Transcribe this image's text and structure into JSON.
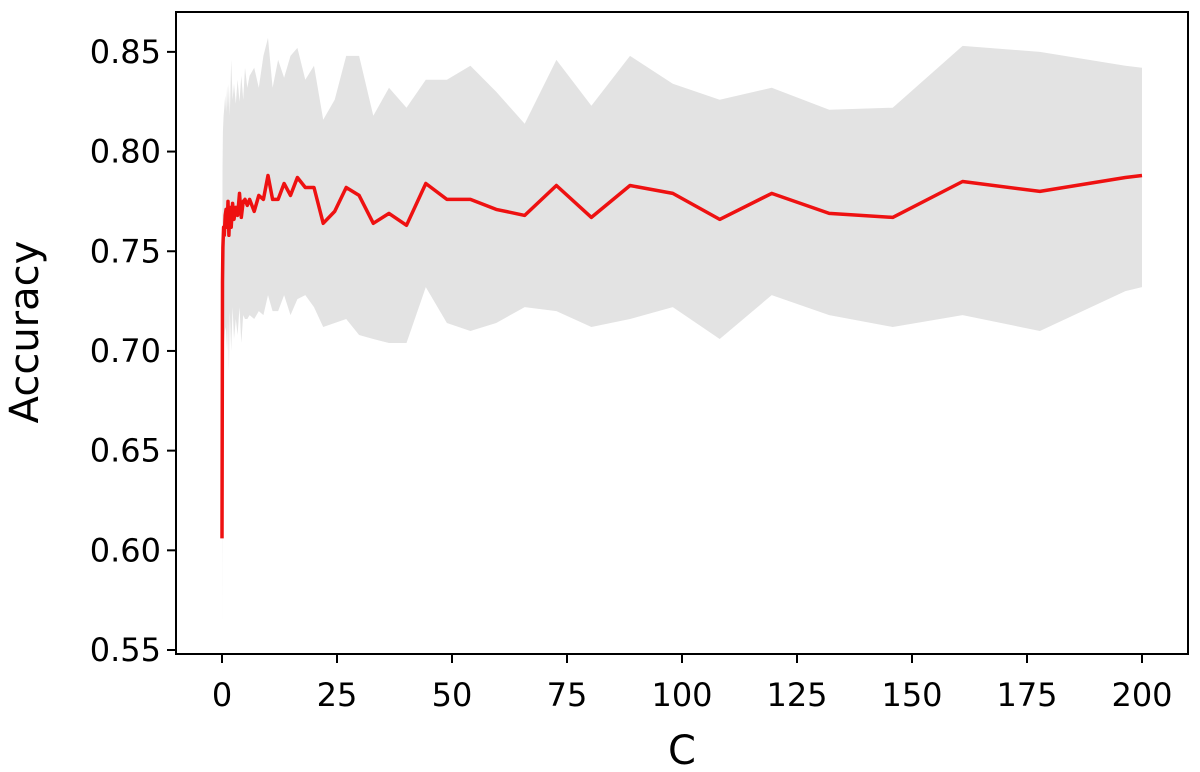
{
  "chart_data": {
    "type": "line",
    "title": "",
    "xlabel": "C",
    "ylabel": "Accuracy",
    "xlim": [
      -10,
      210
    ],
    "ylim": [
      0.548,
      0.87
    ],
    "xticks": [
      0,
      25,
      50,
      75,
      100,
      125,
      150,
      175,
      200
    ],
    "xtick_labels": [
      "0",
      "25",
      "50",
      "75",
      "100",
      "125",
      "150",
      "175",
      "200"
    ],
    "yticks": [
      0.55,
      0.6,
      0.65,
      0.7,
      0.75,
      0.8,
      0.85
    ],
    "ytick_labels": [
      "0.55",
      "0.60",
      "0.65",
      "0.70",
      "0.75",
      "0.80",
      "0.85"
    ],
    "grid": false,
    "colors": {
      "line": "#ee1111",
      "band": "#e3e3e3"
    },
    "series": [
      {
        "x": [
          0.01,
          0.1,
          0.2,
          0.35,
          0.5,
          0.7,
          0.9,
          1.1,
          1.3,
          1.5,
          1.7,
          2.0,
          2.3,
          2.6,
          3.0,
          3.4,
          3.8,
          4.2,
          4.6,
          5.0,
          5.5,
          6.0,
          7.0,
          8.0,
          9.0,
          10.0,
          11.0,
          12.2,
          13.5,
          14.9,
          16.4,
          18.1,
          20.0,
          22.0,
          24.5,
          27.0,
          29.8,
          32.9,
          36.3,
          40.1,
          44.3,
          48.9,
          54.0,
          59.6,
          65.8,
          72.7,
          80.3,
          88.7,
          98.0,
          108.2,
          119.5,
          132.0,
          145.8,
          161.0,
          177.8,
          196.4,
          200.0
        ],
        "mean": [
          0.606,
          0.735,
          0.752,
          0.762,
          0.758,
          0.768,
          0.771,
          0.762,
          0.775,
          0.758,
          0.772,
          0.762,
          0.774,
          0.766,
          0.772,
          0.768,
          0.779,
          0.767,
          0.775,
          0.776,
          0.773,
          0.776,
          0.77,
          0.778,
          0.776,
          0.788,
          0.776,
          0.776,
          0.784,
          0.778,
          0.787,
          0.782,
          0.782,
          0.764,
          0.77,
          0.782,
          0.778,
          0.764,
          0.769,
          0.763,
          0.784,
          0.776,
          0.776,
          0.771,
          0.768,
          0.783,
          0.767,
          0.783,
          0.779,
          0.766,
          0.779,
          0.769,
          0.767,
          0.785,
          0.78,
          0.787,
          0.788
        ],
        "upper": [
          0.65,
          0.79,
          0.81,
          0.818,
          0.822,
          0.828,
          0.82,
          0.833,
          0.822,
          0.834,
          0.818,
          0.846,
          0.826,
          0.834,
          0.824,
          0.836,
          0.825,
          0.838,
          0.826,
          0.842,
          0.832,
          0.838,
          0.842,
          0.832,
          0.848,
          0.857,
          0.832,
          0.846,
          0.837,
          0.848,
          0.852,
          0.836,
          0.843,
          0.816,
          0.826,
          0.848,
          0.848,
          0.818,
          0.832,
          0.822,
          0.836,
          0.836,
          0.843,
          0.83,
          0.814,
          0.846,
          0.823,
          0.848,
          0.834,
          0.826,
          0.832,
          0.821,
          0.822,
          0.853,
          0.85,
          0.843,
          0.842
        ],
        "lower": [
          0.562,
          0.68,
          0.7,
          0.703,
          0.706,
          0.712,
          0.71,
          0.7,
          0.715,
          0.69,
          0.72,
          0.7,
          0.722,
          0.706,
          0.716,
          0.708,
          0.722,
          0.704,
          0.718,
          0.716,
          0.716,
          0.718,
          0.716,
          0.72,
          0.718,
          0.728,
          0.72,
          0.72,
          0.728,
          0.718,
          0.726,
          0.728,
          0.722,
          0.712,
          0.714,
          0.716,
          0.708,
          0.706,
          0.704,
          0.704,
          0.732,
          0.714,
          0.71,
          0.714,
          0.722,
          0.72,
          0.712,
          0.716,
          0.722,
          0.706,
          0.728,
          0.718,
          0.712,
          0.718,
          0.71,
          0.73,
          0.732
        ]
      }
    ]
  }
}
